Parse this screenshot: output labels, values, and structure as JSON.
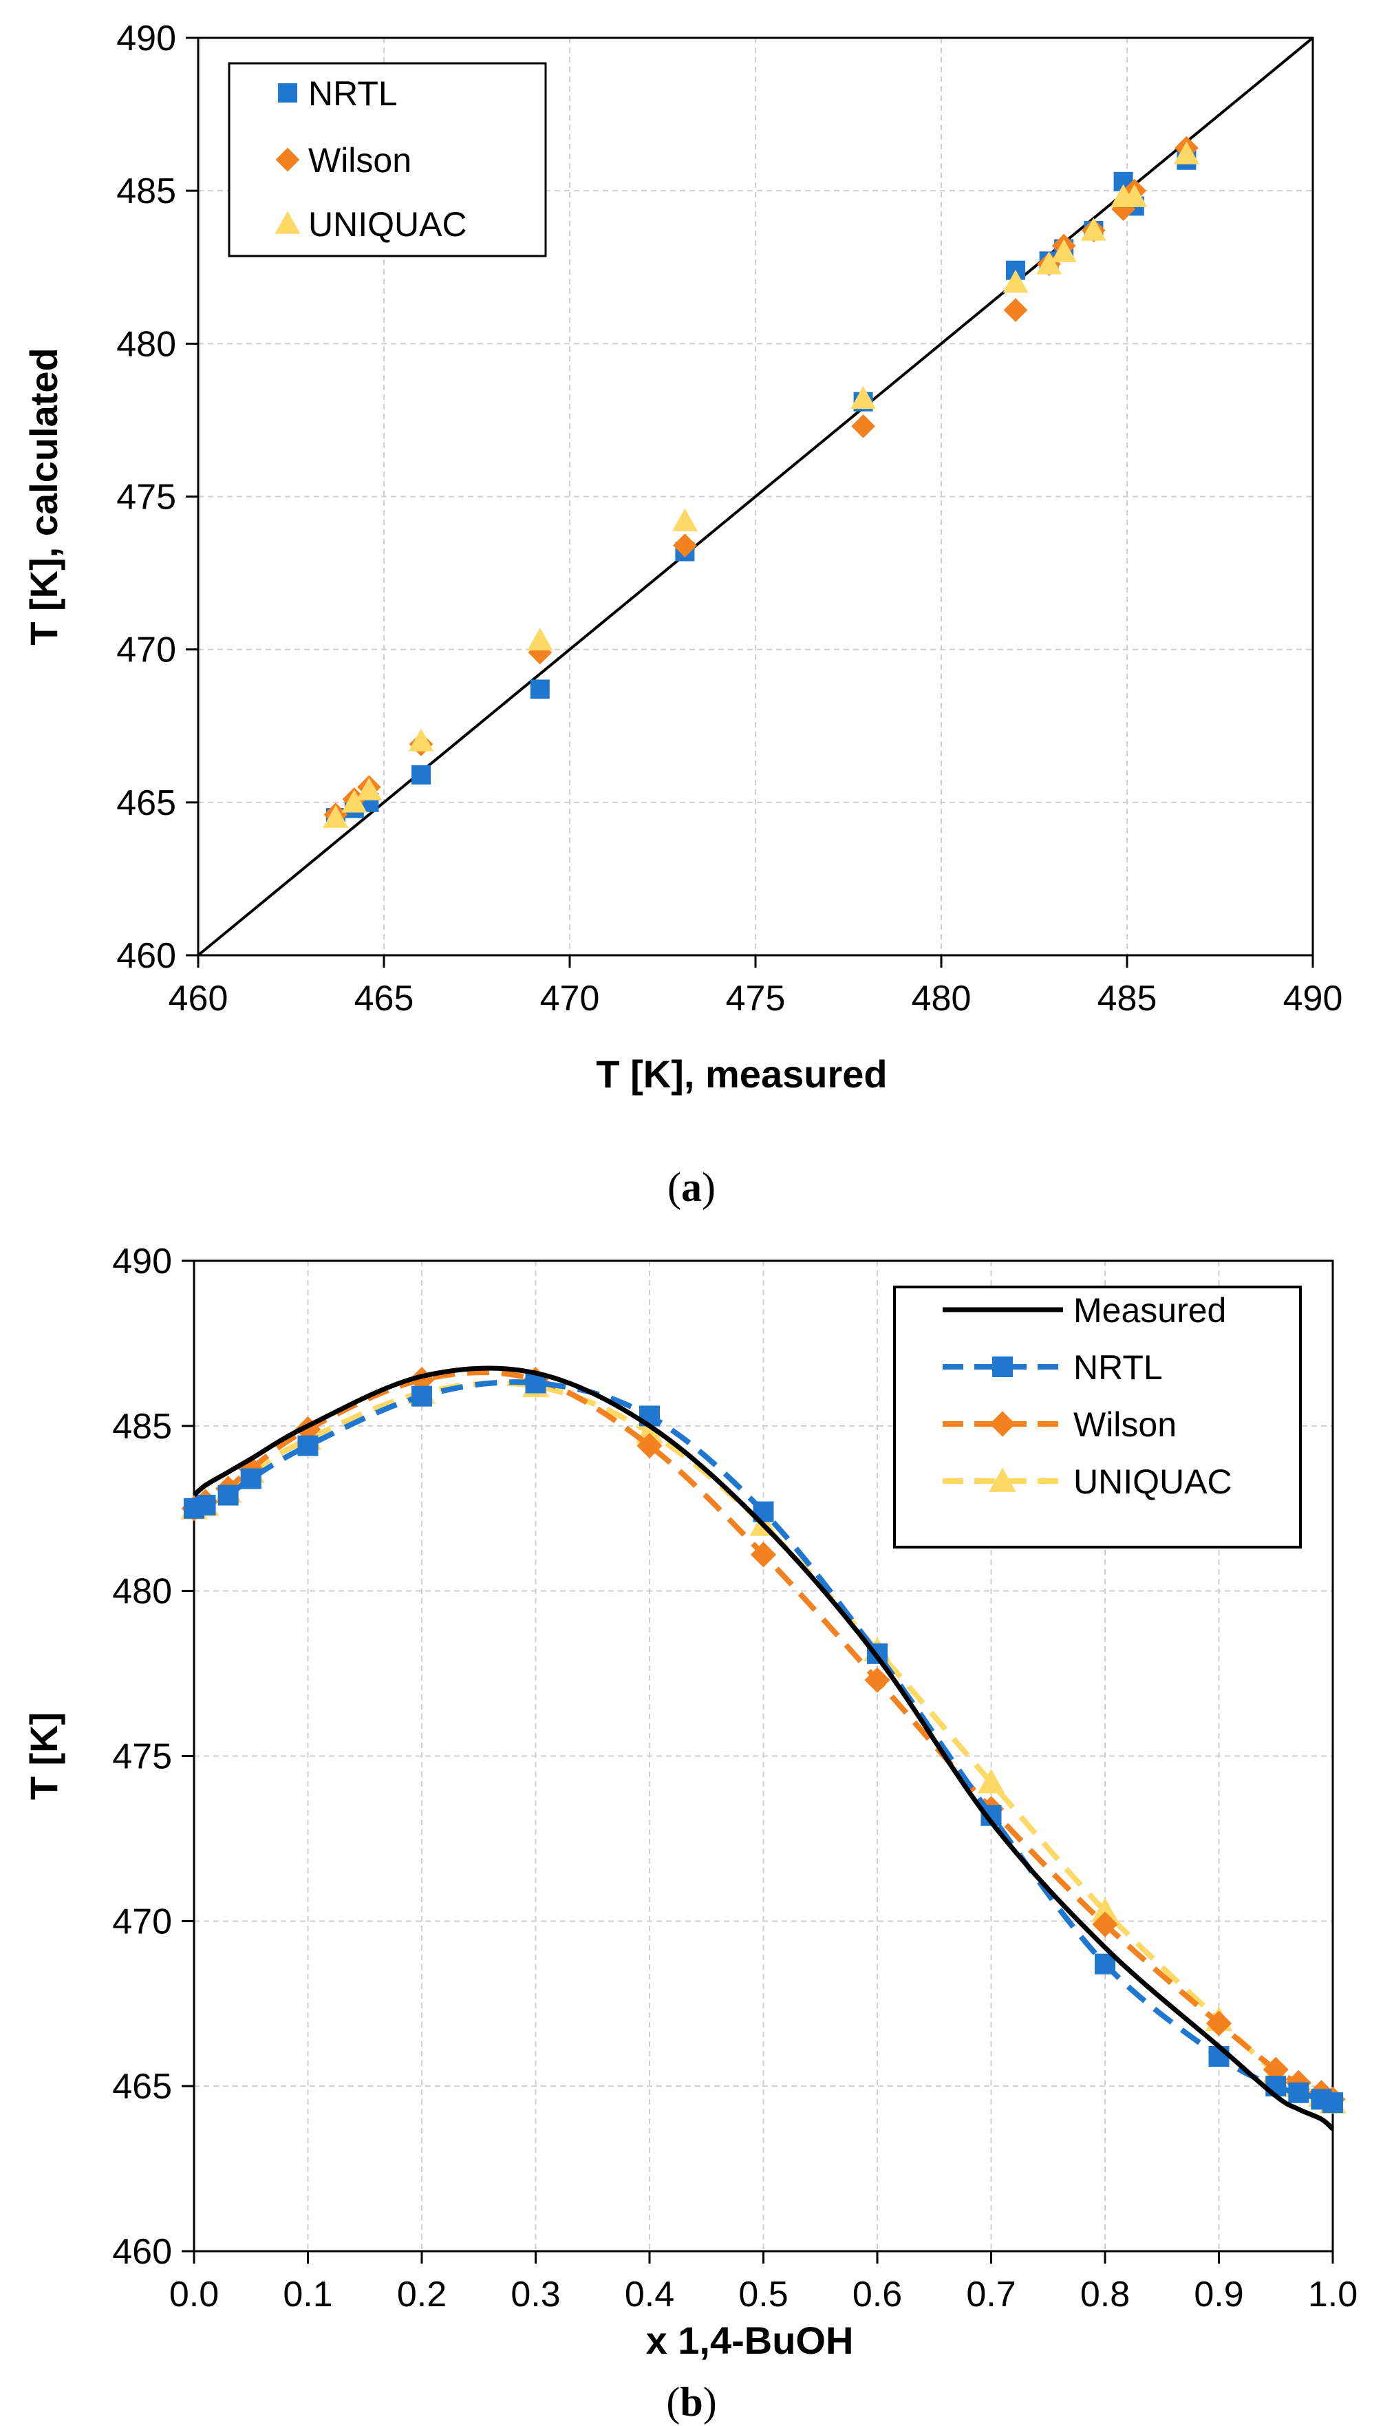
{
  "chart_data": [
    {
      "type": "scatter",
      "panel": "a",
      "caption_letter": "a",
      "xlabel": "T [K], measured",
      "ylabel": "T [K], calculated",
      "xlim": [
        460,
        490
      ],
      "ylim": [
        460,
        490
      ],
      "xticks": [
        "460",
        "465",
        "470",
        "475",
        "480",
        "485",
        "490"
      ],
      "yticks": [
        "460",
        "465",
        "470",
        "475",
        "480",
        "485",
        "490"
      ],
      "grid": true,
      "legend_position": "top-left",
      "diagonal_line": true,
      "series": [
        {
          "name": "NRTL",
          "marker": "square",
          "color": "#1f77d0",
          "points": [
            [
              486.6,
              486.0
            ],
            [
              485.2,
              484.5
            ],
            [
              484.9,
              485.3
            ],
            [
              484.1,
              483.7
            ],
            [
              483.3,
              483.1
            ],
            [
              482.9,
              482.7
            ],
            [
              482.0,
              482.4
            ],
            [
              477.9,
              478.1
            ],
            [
              473.1,
              473.2
            ],
            [
              469.2,
              468.7
            ],
            [
              466.0,
              465.9
            ],
            [
              464.6,
              465.0
            ],
            [
              464.2,
              464.8
            ],
            [
              463.7,
              464.5
            ]
          ]
        },
        {
          "name": "Wilson",
          "marker": "diamond",
          "color": "#f4811f",
          "points": [
            [
              486.6,
              486.4
            ],
            [
              485.2,
              485.0
            ],
            [
              484.9,
              484.4
            ],
            [
              484.1,
              483.7
            ],
            [
              483.3,
              483.2
            ],
            [
              482.9,
              482.6
            ],
            [
              482.0,
              481.1
            ],
            [
              477.9,
              477.3
            ],
            [
              473.1,
              473.4
            ],
            [
              469.2,
              469.9
            ],
            [
              466.0,
              466.9
            ],
            [
              464.6,
              465.5
            ],
            [
              464.2,
              465.1
            ],
            [
              463.7,
              464.6
            ]
          ]
        },
        {
          "name": "UNIQUAC",
          "marker": "triangle",
          "color": "#ffd966",
          "points": [
            [
              486.6,
              486.2
            ],
            [
              485.2,
              484.8
            ],
            [
              484.9,
              484.8
            ],
            [
              484.1,
              483.7
            ],
            [
              483.3,
              483.0
            ],
            [
              482.9,
              482.6
            ],
            [
              482.0,
              482.0
            ],
            [
              477.9,
              478.2
            ],
            [
              473.1,
              474.2
            ],
            [
              469.2,
              470.3
            ],
            [
              466.0,
              467.0
            ],
            [
              464.6,
              465.4
            ],
            [
              464.2,
              465.0
            ],
            [
              463.7,
              464.5
            ]
          ]
        }
      ]
    },
    {
      "type": "line",
      "panel": "b",
      "caption_letter": "b",
      "xlabel": "x 1,4-BuOH",
      "ylabel": "T [K]",
      "xlim": [
        0.0,
        1.0
      ],
      "ylim": [
        460,
        490
      ],
      "xticks": [
        "0.0",
        "0.1",
        "0.2",
        "0.3",
        "0.4",
        "0.5",
        "0.6",
        "0.7",
        "0.8",
        "0.9",
        "1.0"
      ],
      "yticks": [
        "460",
        "465",
        "470",
        "475",
        "480",
        "485",
        "490"
      ],
      "grid": true,
      "legend_position": "top-right",
      "x": [
        0.0,
        0.01,
        0.03,
        0.05,
        0.1,
        0.2,
        0.3,
        0.4,
        0.5,
        0.6,
        0.7,
        0.8,
        0.9,
        0.95,
        0.97,
        0.99,
        1.0
      ],
      "series": [
        {
          "name": "Measured",
          "style": "solid",
          "marker": "none",
          "color": "#000000",
          "values": [
            482.9,
            483.2,
            483.6,
            484.0,
            485.0,
            486.5,
            486.6,
            485.0,
            482.0,
            478.0,
            473.0,
            469.2,
            466.2,
            464.7,
            464.3,
            464.0,
            463.7
          ]
        },
        {
          "name": "NRTL",
          "style": "dashed",
          "marker": "square",
          "color": "#1f77d0",
          "values": [
            482.5,
            482.6,
            482.9,
            483.4,
            484.4,
            485.9,
            486.3,
            485.3,
            482.4,
            478.1,
            473.2,
            468.7,
            465.9,
            465.0,
            464.8,
            464.6,
            464.5
          ]
        },
        {
          "name": "Wilson",
          "style": "dashed",
          "marker": "diamond",
          "color": "#f4811f",
          "values": [
            482.5,
            482.7,
            483.1,
            483.7,
            484.9,
            486.4,
            486.4,
            484.4,
            481.1,
            477.3,
            473.4,
            469.9,
            466.9,
            465.5,
            465.1,
            464.8,
            464.6
          ]
        },
        {
          "name": "UNIQUAC",
          "style": "dashed",
          "marker": "triangle",
          "color": "#ffd966",
          "values": [
            482.5,
            482.6,
            483.0,
            483.6,
            484.6,
            486.0,
            486.2,
            484.8,
            482.0,
            478.2,
            474.2,
            470.3,
            467.0,
            465.4,
            465.0,
            464.7,
            464.5
          ]
        }
      ]
    }
  ]
}
